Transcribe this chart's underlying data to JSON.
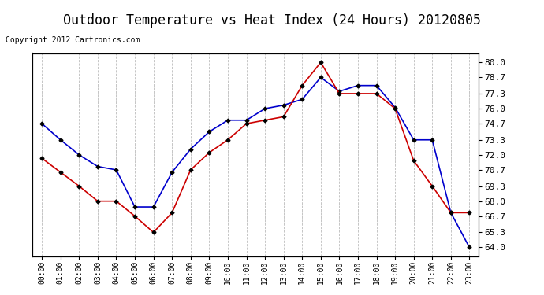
{
  "title": "Outdoor Temperature vs Heat Index (24 Hours) 20120805",
  "copyright": "Copyright 2012 Cartronics.com",
  "background_color": "#ffffff",
  "plot_background": "#ffffff",
  "grid_color": "#bbbbbb",
  "title_fontsize": 12,
  "x_labels": [
    "00:00",
    "01:00",
    "02:00",
    "03:00",
    "04:00",
    "05:00",
    "06:00",
    "07:00",
    "08:00",
    "09:00",
    "10:00",
    "11:00",
    "12:00",
    "13:00",
    "14:00",
    "15:00",
    "16:00",
    "17:00",
    "18:00",
    "19:00",
    "20:00",
    "21:00",
    "22:00",
    "23:00"
  ],
  "y_ticks": [
    64.0,
    65.3,
    66.7,
    68.0,
    69.3,
    70.7,
    72.0,
    73.3,
    74.7,
    76.0,
    77.3,
    78.7,
    80.0
  ],
  "ylim": [
    63.2,
    80.8
  ],
  "heat_index": [
    74.7,
    73.3,
    72.0,
    71.0,
    70.7,
    67.5,
    67.5,
    70.5,
    72.5,
    74.0,
    75.0,
    75.0,
    76.0,
    76.3,
    76.8,
    78.7,
    77.5,
    78.0,
    78.0,
    76.1,
    73.3,
    73.3,
    67.0,
    64.0
  ],
  "temperature": [
    71.7,
    70.5,
    69.3,
    68.0,
    68.0,
    66.7,
    65.3,
    67.0,
    70.7,
    72.2,
    73.3,
    74.7,
    75.0,
    75.3,
    78.0,
    80.0,
    77.3,
    77.3,
    77.3,
    76.0,
    71.5,
    69.3,
    67.0,
    67.0
  ],
  "heat_index_color": "#0000cc",
  "temperature_color": "#cc0000",
  "legend_hi_bg": "#0000cc",
  "legend_temp_bg": "#cc0000",
  "legend_text_color": "#ffffff",
  "marker": "D",
  "marker_color": "#000000",
  "marker_size": 2.5,
  "line_width": 1.2
}
